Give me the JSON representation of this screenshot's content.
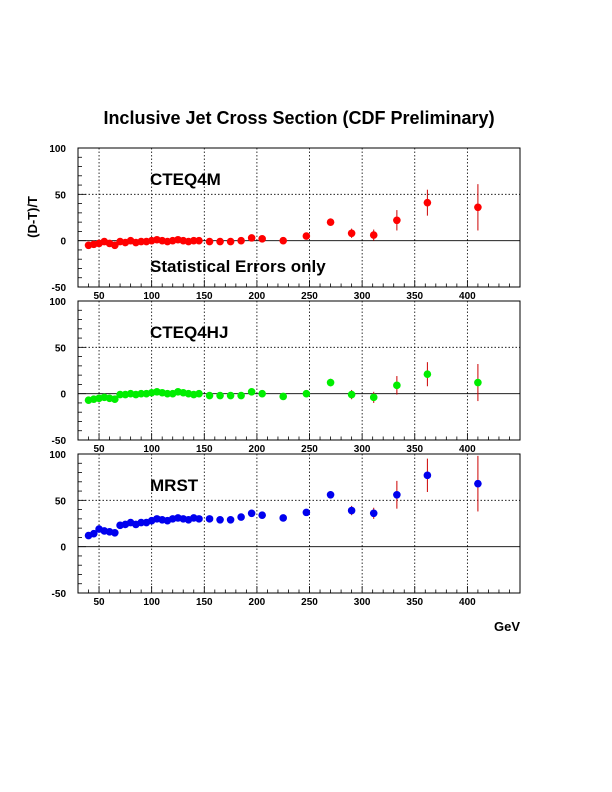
{
  "chart_data": {
    "type": "scatter",
    "title": "Inclusive Jet Cross Section (CDF Preliminary)",
    "ylabel": "(D-T)/T",
    "xlabel": "GeV",
    "xlim": [
      30,
      450
    ],
    "ylim": [
      -50,
      100
    ],
    "x_ticks": [
      50,
      100,
      150,
      200,
      250,
      300,
      350,
      400
    ],
    "y_ticks": [
      -50,
      0,
      50,
      100
    ],
    "grid": true,
    "x": [
      40,
      45,
      50,
      55,
      60,
      65,
      70,
      75,
      80,
      85,
      90,
      95,
      100,
      105,
      110,
      115,
      120,
      125,
      130,
      135,
      140,
      145,
      155,
      165,
      175,
      185,
      195,
      205,
      225,
      247,
      270,
      290,
      311,
      333,
      362,
      410
    ],
    "panels": [
      {
        "annotation": "CTEQ4M",
        "note": "Statistical Errors only",
        "color": "#ff0000",
        "values": [
          -5,
          -4,
          -3,
          -1,
          -3,
          -5,
          -1,
          -2,
          0,
          -2,
          -1,
          -1,
          0,
          1,
          0,
          -1,
          0,
          1,
          0,
          -1,
          0,
          0,
          -1,
          -1,
          -1,
          0,
          3,
          2,
          0,
          5,
          20,
          8,
          6,
          22,
          41,
          36
        ],
        "errors": [
          1,
          1,
          1,
          1,
          1,
          1,
          1,
          1,
          1,
          1,
          1,
          1,
          1,
          1,
          1,
          1,
          1,
          1,
          1,
          1,
          1,
          1,
          1,
          1,
          1,
          1,
          1,
          1,
          2,
          3,
          4,
          5,
          6,
          11,
          14,
          25
        ]
      },
      {
        "annotation": "CTEQ4HJ",
        "color": "#00ee00",
        "values": [
          -7,
          -6,
          -5,
          -4,
          -5,
          -6,
          -1,
          -1,
          0,
          -1,
          0,
          0,
          1,
          2,
          1,
          0,
          0,
          2,
          1,
          0,
          -1,
          0,
          -2,
          -2,
          -2,
          -2,
          2,
          0,
          -3,
          0,
          12,
          -1,
          -4,
          9,
          21,
          12
        ],
        "errors": [
          1,
          1,
          1,
          1,
          1,
          1,
          1,
          1,
          1,
          1,
          1,
          1,
          1,
          1,
          1,
          1,
          1,
          1,
          1,
          1,
          1,
          1,
          1,
          1,
          1,
          1,
          1,
          1,
          2,
          3,
          4,
          5,
          6,
          10,
          13,
          20
        ]
      },
      {
        "annotation": "MRST",
        "color": "#0000ee",
        "values": [
          12,
          14,
          19,
          17,
          16,
          15,
          23,
          24,
          26,
          24,
          26,
          26,
          28,
          30,
          29,
          28,
          30,
          31,
          30,
          29,
          31,
          30,
          30,
          29,
          29,
          32,
          36,
          34,
          31,
          37,
          56,
          39,
          36,
          56,
          77,
          68
        ],
        "errors": [
          1,
          1,
          1,
          1,
          1,
          1,
          1,
          1,
          1,
          1,
          1,
          1,
          1,
          1,
          1,
          1,
          1,
          1,
          1,
          1,
          1,
          1,
          1,
          1,
          1,
          1,
          1,
          1,
          2,
          3,
          4,
          5,
          6,
          15,
          18,
          30
        ]
      }
    ]
  }
}
